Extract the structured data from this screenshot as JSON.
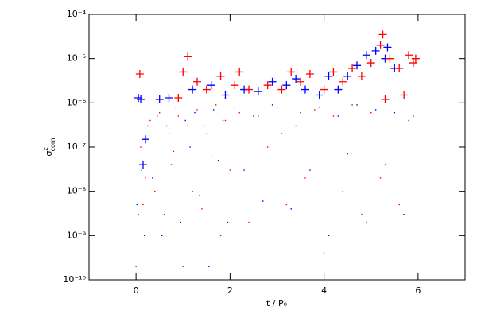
{
  "chart_data": {
    "type": "scatter",
    "xlabel": "t / P₀",
    "ylabel": {
      "symbol": "σ",
      "sup": "z",
      "sub": "com"
    },
    "xlim": [
      -1,
      7
    ],
    "xticks": [
      0,
      2,
      4,
      6
    ],
    "ylim": [
      1e-10,
      0.0001
    ],
    "log_y": true,
    "yticks": [
      {
        "value": 1e-10,
        "label": "10⁻¹⁰"
      },
      {
        "value": 1e-09,
        "label": "10⁻⁹"
      },
      {
        "value": 1e-08,
        "label": "10⁻⁸"
      },
      {
        "value": 1e-07,
        "label": "10⁻⁷"
      },
      {
        "value": 1e-06,
        "label": "10⁻⁶"
      },
      {
        "value": 1e-05,
        "label": "10⁻⁵"
      },
      {
        "value": 0.0001,
        "label": "10⁻⁴"
      }
    ],
    "series": [
      {
        "color": "#ff0000",
        "marker": "dot",
        "x": [
          0.0,
          0.05,
          0.1,
          0.15,
          0.2,
          0.3,
          0.4,
          0.5,
          0.6,
          0.7,
          0.8,
          0.9,
          1.0,
          1.1,
          1.2,
          1.3,
          1.4,
          1.5,
          1.6,
          1.7,
          1.8,
          1.9,
          2.0,
          2.2,
          2.4,
          2.6,
          2.8,
          3.0,
          3.2,
          3.4,
          3.6,
          3.8,
          4.0,
          4.2,
          4.4,
          4.6,
          4.8,
          5.0,
          5.2,
          5.4,
          5.6,
          5.8
        ],
        "values": [
          2e-10,
          3e-09,
          1e-07,
          5e-09,
          2e-08,
          4e-07,
          1e-08,
          6e-07,
          3e-09,
          2e-07,
          8e-08,
          5e-07,
          2e-10,
          3e-07,
          1e-08,
          7e-07,
          4e-09,
          2e-07,
          6e-08,
          9e-07,
          1e-09,
          4e-07,
          3e-08,
          6e-07,
          2e-09,
          5e-07,
          1e-07,
          8e-07,
          5e-09,
          3e-07,
          2e-08,
          7e-07,
          4e-10,
          5e-07,
          1e-08,
          9e-07,
          3e-09,
          6e-07,
          2e-08,
          8e-07,
          5e-09,
          4e-07
        ]
      },
      {
        "color": "#0000ff",
        "marker": "dot",
        "x": [
          0.02,
          0.08,
          0.12,
          0.18,
          0.25,
          0.35,
          0.45,
          0.55,
          0.65,
          0.75,
          0.85,
          0.95,
          1.05,
          1.15,
          1.25,
          1.35,
          1.45,
          1.55,
          1.65,
          1.75,
          1.85,
          1.95,
          2.1,
          2.3,
          2.5,
          2.7,
          2.9,
          3.1,
          3.3,
          3.5,
          3.7,
          3.9,
          4.1,
          4.3,
          4.5,
          4.7,
          4.9,
          5.1,
          5.3,
          5.5,
          5.7,
          5.9
        ],
        "values": [
          5e-09,
          4e-08,
          3e-08,
          1e-09,
          3e-07,
          2e-08,
          5e-07,
          1e-09,
          3e-07,
          4e-08,
          8e-07,
          2e-09,
          4e-07,
          1e-07,
          6e-07,
          8e-09,
          3e-07,
          2e-10,
          7e-07,
          5e-08,
          4e-07,
          2e-09,
          8e-07,
          3e-08,
          5e-07,
          6e-09,
          9e-07,
          2e-07,
          4e-09,
          6e-07,
          3e-08,
          8e-07,
          1e-09,
          5e-07,
          7e-08,
          9e-07,
          2e-09,
          7e-07,
          4e-08,
          6e-07,
          3e-09,
          5e-07
        ]
      },
      {
        "color": "#0000ff",
        "marker": "plus",
        "x": [
          0.05,
          0.1,
          0.5,
          0.7,
          1.2,
          1.6,
          1.9,
          2.3,
          2.6,
          2.9,
          3.2,
          3.4,
          3.6,
          3.9,
          4.1,
          4.3,
          4.5,
          4.7,
          4.9,
          5.1,
          5.3,
          5.5,
          5.35,
          0.15,
          0.2
        ],
        "values": [
          1.3e-06,
          1.2e-06,
          1.2e-06,
          1.3e-06,
          2e-06,
          2.5e-06,
          1.5e-06,
          2e-06,
          1.8e-06,
          3e-06,
          2.5e-06,
          3.5e-06,
          2e-06,
          1.5e-06,
          4e-06,
          2e-06,
          4e-06,
          7e-06,
          1.2e-05,
          1.5e-05,
          1e-05,
          6e-06,
          1.8e-05,
          4e-08,
          1.5e-07
        ]
      },
      {
        "color": "#ff0000",
        "marker": "plus",
        "x": [
          0.08,
          0.9,
          1.0,
          1.1,
          1.3,
          1.5,
          1.8,
          2.1,
          2.2,
          2.4,
          2.8,
          3.1,
          3.3,
          3.5,
          3.7,
          4.0,
          4.2,
          4.4,
          4.6,
          4.8,
          5.0,
          5.2,
          5.25,
          5.4,
          5.6,
          5.8,
          5.9,
          5.95,
          5.7,
          5.3
        ],
        "values": [
          4.5e-06,
          1.3e-06,
          5e-06,
          1.1e-05,
          3e-06,
          2e-06,
          4e-06,
          2.5e-06,
          5e-06,
          2e-06,
          2.5e-06,
          2e-06,
          5e-06,
          3e-06,
          4.5e-06,
          2e-06,
          5e-06,
          3e-06,
          6e-06,
          4e-06,
          8e-06,
          2e-05,
          3.5e-05,
          1e-05,
          6e-06,
          1.2e-05,
          8e-06,
          1e-05,
          1.5e-06,
          1.2e-06
        ]
      }
    ]
  }
}
